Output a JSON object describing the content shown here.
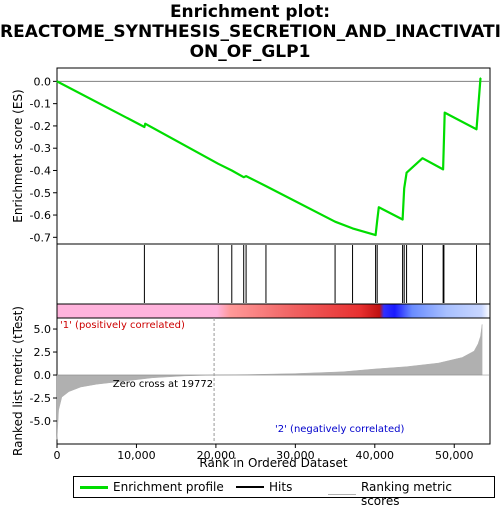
{
  "title_lines": [
    "Enrichment plot:",
    "REACTOME_SYNTHESIS_SECRETION_AND_INACTIVATI",
    "ON_OF_GLP1"
  ],
  "colors": {
    "es_line": "#00dd00",
    "hits": "#000000",
    "metric_fill": "#b0b0b0",
    "zero_line": "#808080",
    "positive_band": "#ffb3dc",
    "positive_strong": "#e83030",
    "negative_band": "#a8c0ff",
    "negative_strong": "#1a1aff",
    "pos_label": "#cc0000",
    "neg_label": "#0000cc"
  },
  "chart_data": [
    {
      "type": "line",
      "panel": "enrichment-profile",
      "ylabel": "Enrichment score (ES)",
      "xlim": [
        0,
        54500
      ],
      "ylim": [
        -0.73,
        0.06
      ],
      "yticks": [
        0.0,
        -0.1,
        -0.2,
        -0.3,
        -0.4,
        -0.5,
        -0.6,
        -0.7
      ],
      "ytick_labels": [
        "0.0",
        "-0.1",
        "-0.2",
        "-0.3",
        "-0.4",
        "-0.5",
        "-0.6",
        "-0.7"
      ],
      "series": [
        {
          "x": [
            0,
            11000,
            11100,
            20300,
            22000,
            23500,
            23800,
            26300,
            35000,
            37200,
            40100,
            40300,
            40500,
            43500,
            43700,
            44000,
            46000,
            48600,
            48700,
            48800,
            52800,
            53300
          ],
          "y": [
            0.0,
            -0.205,
            -0.19,
            -0.37,
            -0.4,
            -0.43,
            -0.425,
            -0.47,
            -0.63,
            -0.66,
            -0.69,
            -0.625,
            -0.565,
            -0.62,
            -0.48,
            -0.41,
            -0.345,
            -0.395,
            -0.27,
            -0.14,
            -0.215,
            0.015
          ]
        }
      ]
    },
    {
      "type": "scatter",
      "panel": "hits",
      "x": [
        11000,
        20300,
        22000,
        23500,
        23800,
        26300,
        35000,
        37200,
        40100,
        40300,
        43500,
        43700,
        44000,
        46000,
        48600,
        48700,
        52800
      ]
    },
    {
      "type": "area",
      "panel": "ranked-metric",
      "xlabel": "Rank in Ordered Dataset",
      "ylabel": "Ranked list metric (tTest)",
      "xlim": [
        0,
        54500
      ],
      "ylim": [
        -7.5,
        6.2
      ],
      "yticks": [
        5.0,
        2.5,
        0.0,
        -2.5,
        -5.0
      ],
      "ytick_labels": [
        "5.0",
        "2.5",
        "0.0",
        "-2.5",
        "-5.0"
      ],
      "xticks": [
        0,
        10000,
        20000,
        30000,
        40000,
        50000
      ],
      "xtick_labels": [
        "0",
        "10,000",
        "20,000",
        "30,000",
        "40,000",
        "50,000"
      ],
      "x": [
        0,
        200,
        600,
        1500,
        3000,
        5000,
        8000,
        12000,
        16000,
        19772,
        24000,
        30000,
        36000,
        40000,
        44000,
        48000,
        51000,
        52500,
        53000,
        53300,
        53500
      ],
      "y": [
        -7.0,
        -3.8,
        -2.4,
        -1.8,
        -1.3,
        -1.0,
        -0.7,
        -0.3,
        -0.1,
        0.0,
        0.05,
        0.15,
        0.35,
        0.65,
        0.9,
        1.3,
        1.9,
        2.6,
        3.4,
        4.2,
        5.5
      ],
      "annotations": {
        "pos_label": "'1' (positively correlated)",
        "neg_label": "'2' (negatively correlated)",
        "zero_cross": "Zero cross at 19772",
        "zero_cross_x": 19772
      }
    }
  ],
  "legend": {
    "items": [
      {
        "label": "Enrichment profile"
      },
      {
        "label": "Hits"
      },
      {
        "label": "Ranking metric scores"
      }
    ]
  }
}
